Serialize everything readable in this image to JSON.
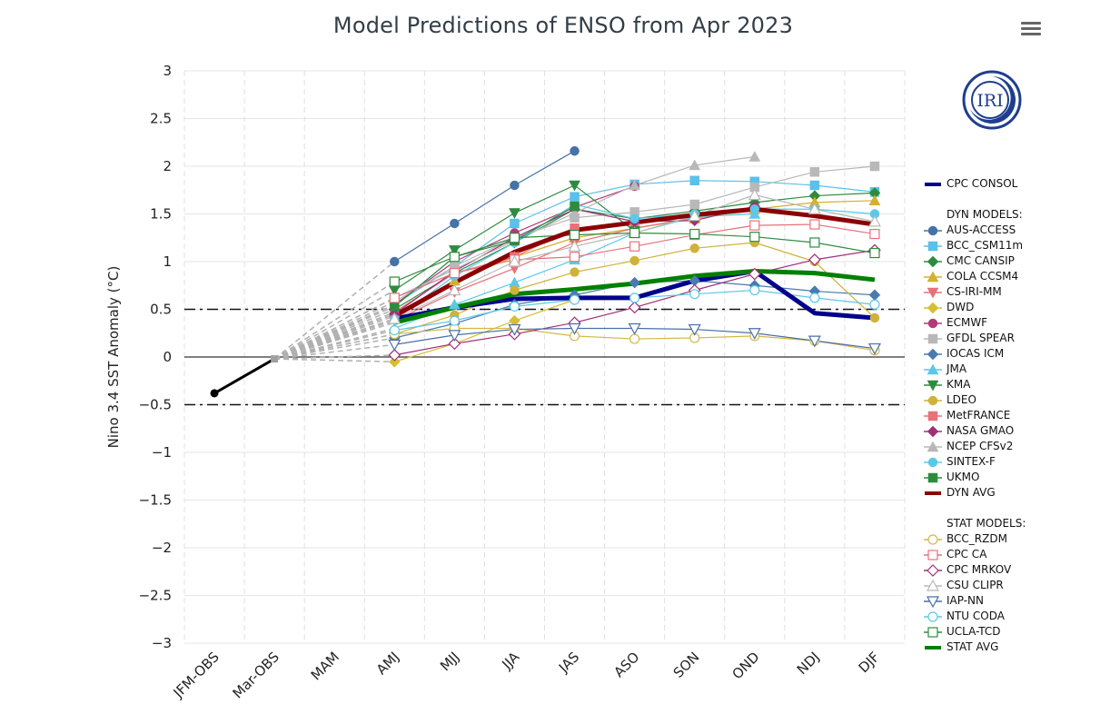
{
  "title": "Model Predictions of ENSO from Apr 2023",
  "menu": {
    "icon": "hamburger-menu-icon",
    "label": "Chart context menu"
  },
  "logo": {
    "text": "IRI",
    "color": "#1f3e8f"
  },
  "chart_data": {
    "type": "line",
    "title": "Model Predictions of ENSO from Apr 2023",
    "xlabel": "",
    "ylabel": "Nino 3.4 SST Anomaly (°C)",
    "ylim": [
      -3,
      3
    ],
    "yticks": [
      "3",
      "2.5",
      "2",
      "1.5",
      "1",
      "0.5",
      "0",
      "−0.5",
      "−1",
      "−1.5",
      "−2",
      "−2.5",
      "−3"
    ],
    "ytick_values": [
      3,
      2.5,
      2,
      1.5,
      1,
      0.5,
      0,
      -0.5,
      -1,
      -1.5,
      -2,
      -2.5,
      -3
    ],
    "categories": [
      "JFM-OBS",
      "Mar-OBS",
      "MAM",
      "AMJ",
      "MJJ",
      "JJA",
      "JAS",
      "ASO",
      "SON",
      "OND",
      "NDJ",
      "DJF"
    ],
    "reference_lines": [
      {
        "value": 0.5,
        "style": "dash-dot"
      },
      {
        "value": -0.5,
        "style": "dash-dot"
      },
      {
        "value": 0,
        "style": "solid"
      }
    ],
    "grid": true,
    "legend_position": "right",
    "observed": {
      "name": "Observed",
      "color": "#000000",
      "values": [
        -0.38,
        -0.02,
        null,
        null,
        null,
        null,
        null,
        null,
        null,
        null,
        null,
        null
      ]
    },
    "legend_headers": {
      "dyn": "DYN MODELS:",
      "stat": "STAT MODELS:"
    },
    "series": [
      {
        "name": "CPC CONSOL",
        "group": "consol",
        "color": "#00008b",
        "marker": "none",
        "width": 5,
        "values": [
          null,
          null,
          null,
          0.4,
          0.52,
          0.61,
          0.62,
          0.62,
          0.8,
          0.9,
          0.46,
          0.41
        ]
      },
      {
        "name": "AUS-ACCESS",
        "group": "dyn",
        "color": "#4572a7",
        "marker": "circle",
        "filled": true,
        "values": [
          null,
          null,
          null,
          1.0,
          1.4,
          1.8,
          2.16,
          null,
          null,
          null,
          null,
          null
        ]
      },
      {
        "name": "BCC_CSM11m",
        "group": "dyn",
        "color": "#5bc0eb",
        "marker": "square",
        "filled": true,
        "values": [
          null,
          null,
          null,
          0.55,
          0.95,
          1.4,
          1.68,
          1.81,
          1.85,
          1.84,
          1.8,
          1.73
        ]
      },
      {
        "name": "CMC CANSIP",
        "group": "dyn",
        "color": "#2e8b3e",
        "marker": "diamond",
        "filled": true,
        "values": [
          null,
          null,
          null,
          0.5,
          0.88,
          1.2,
          1.55,
          1.45,
          1.53,
          1.62,
          1.69,
          1.72
        ]
      },
      {
        "name": "COLA CCSM4",
        "group": "dyn",
        "color": "#d4b02e",
        "marker": "triangle",
        "filled": true,
        "values": [
          null,
          null,
          null,
          0.4,
          0.8,
          1.05,
          1.25,
          1.35,
          1.45,
          1.55,
          1.62,
          1.64
        ]
      },
      {
        "name": "CS-IRI-MM",
        "group": "dyn",
        "color": "#e8707a",
        "marker": "triangle-down",
        "filled": true,
        "values": [
          null,
          null,
          null,
          0.38,
          0.68,
          0.93,
          1.2,
          1.35,
          1.46,
          null,
          null,
          null
        ]
      },
      {
        "name": "DWD",
        "group": "dyn",
        "color": "#d4c030",
        "marker": "diamond",
        "filled": true,
        "values": [
          null,
          null,
          null,
          -0.05,
          0.14,
          0.38,
          0.6,
          null,
          null,
          null,
          null,
          null
        ]
      },
      {
        "name": "ECMWF",
        "group": "dyn",
        "color": "#b03a7a",
        "marker": "circle",
        "filled": true,
        "values": [
          null,
          null,
          null,
          0.55,
          1.0,
          1.3,
          1.57,
          1.79,
          null,
          null,
          null,
          null
        ]
      },
      {
        "name": "GFDL SPEAR",
        "group": "dyn",
        "color": "#b8b8b8",
        "marker": "square",
        "filled": true,
        "values": [
          null,
          null,
          null,
          0.58,
          0.95,
          1.25,
          1.46,
          1.52,
          1.6,
          1.78,
          1.94,
          2.0
        ]
      },
      {
        "name": "IOCAS ICM",
        "group": "dyn",
        "color": "#4a7ab0",
        "marker": "diamond",
        "filled": true,
        "values": [
          null,
          null,
          null,
          0.2,
          0.35,
          0.55,
          0.65,
          0.78,
          0.8,
          0.75,
          0.69,
          0.65
        ]
      },
      {
        "name": "JMA",
        "group": "dyn",
        "color": "#5bc8e8",
        "marker": "triangle",
        "filled": true,
        "values": [
          null,
          null,
          null,
          0.3,
          0.55,
          0.78,
          1.02,
          1.3,
          1.47,
          1.5,
          null,
          null
        ]
      },
      {
        "name": "KMA",
        "group": "dyn",
        "color": "#2e8b3e",
        "marker": "triangle-down",
        "filled": true,
        "values": [
          null,
          null,
          null,
          0.7,
          1.12,
          1.51,
          1.8,
          1.32,
          null,
          null,
          null,
          null
        ]
      },
      {
        "name": "LDEO",
        "group": "dyn",
        "color": "#d0b23a",
        "marker": "circle",
        "filled": true,
        "values": [
          null,
          null,
          null,
          0.24,
          0.44,
          0.7,
          0.89,
          1.01,
          1.14,
          1.2,
          1.0,
          0.41
        ]
      },
      {
        "name": "MetFRANCE",
        "group": "dyn",
        "color": "#e8707a",
        "marker": "square",
        "filled": true,
        "values": [
          null,
          null,
          null,
          0.47,
          0.88,
          1.05,
          1.35,
          null,
          null,
          null,
          null,
          null
        ]
      },
      {
        "name": "NASA GMAO",
        "group": "dyn",
        "color": "#a0307a",
        "marker": "diamond",
        "filled": true,
        "values": [
          null,
          null,
          null,
          0.45,
          0.9,
          1.25,
          1.55,
          1.42,
          1.43,
          1.58,
          null,
          null
        ]
      },
      {
        "name": "NCEP CFSv2",
        "group": "dyn",
        "color": "#b8b8b8",
        "marker": "triangle",
        "filled": true,
        "values": [
          null,
          null,
          null,
          0.62,
          0.92,
          1.22,
          1.51,
          1.8,
          2.01,
          2.1,
          null,
          null
        ]
      },
      {
        "name": "SINTEX-F",
        "group": "dyn",
        "color": "#5bc8e8",
        "marker": "circle",
        "filled": true,
        "values": [
          null,
          null,
          null,
          0.4,
          0.85,
          1.2,
          1.6,
          1.45,
          1.5,
          1.55,
          1.55,
          1.5
        ]
      },
      {
        "name": "UKMO",
        "group": "dyn",
        "color": "#2e8b3e",
        "marker": "square",
        "filled": true,
        "values": [
          null,
          null,
          null,
          0.53,
          1.05,
          1.22,
          1.58,
          null,
          null,
          null,
          null,
          null
        ]
      },
      {
        "name": "DYN AVG",
        "group": "dyn",
        "color": "#8b0000",
        "marker": "none",
        "width": 5,
        "values": [
          null,
          null,
          null,
          0.43,
          0.78,
          1.1,
          1.33,
          1.41,
          1.49,
          1.55,
          1.48,
          1.39
        ]
      },
      {
        "name": "BCC_RZDM",
        "group": "stat",
        "color": "#d4b84a",
        "marker": "circle",
        "filled": false,
        "values": [
          null,
          null,
          null,
          0.24,
          0.3,
          0.3,
          0.22,
          0.19,
          0.2,
          0.22,
          0.17,
          0.07
        ]
      },
      {
        "name": "CPC CA",
        "group": "stat",
        "color": "#e8707a",
        "marker": "square",
        "filled": false,
        "values": [
          null,
          null,
          null,
          0.62,
          0.88,
          1.02,
          1.05,
          1.16,
          1.28,
          1.38,
          1.39,
          1.29
        ]
      },
      {
        "name": "CPC MRKOV",
        "group": "stat",
        "color": "#a0307a",
        "marker": "diamond",
        "filled": false,
        "values": [
          null,
          null,
          null,
          0.02,
          0.14,
          0.24,
          0.36,
          0.52,
          0.7,
          0.87,
          1.02,
          1.12
        ]
      },
      {
        "name": "CSU CLIPR",
        "group": "stat",
        "color": "#b8b8b8",
        "marker": "triangle",
        "filled": false,
        "values": [
          null,
          null,
          null,
          0.4,
          0.7,
          1.0,
          1.16,
          1.3,
          1.48,
          1.7,
          1.55,
          1.42
        ]
      },
      {
        "name": "IAP-NN",
        "group": "stat",
        "color": "#4a6fa5",
        "marker": "triangle-down",
        "filled": false,
        "values": [
          null,
          null,
          null,
          0.13,
          0.23,
          0.29,
          0.3,
          0.3,
          0.29,
          0.25,
          0.17,
          0.09
        ]
      },
      {
        "name": "NTU CODA",
        "group": "stat",
        "color": "#5bc8e8",
        "marker": "circle",
        "filled": false,
        "values": [
          null,
          null,
          null,
          0.28,
          0.38,
          0.53,
          0.6,
          0.62,
          0.66,
          0.7,
          0.62,
          0.55
        ]
      },
      {
        "name": "UCLA-TCD",
        "group": "stat",
        "color": "#2e8b3e",
        "marker": "square",
        "filled": false,
        "values": [
          null,
          null,
          null,
          0.79,
          1.05,
          1.25,
          1.28,
          1.3,
          1.29,
          1.26,
          1.2,
          1.09
        ]
      },
      {
        "name": "STAT AVG",
        "group": "stat",
        "color": "#008000",
        "marker": "none",
        "width": 5,
        "values": [
          null,
          null,
          null,
          0.36,
          0.52,
          0.66,
          0.71,
          0.77,
          0.85,
          0.9,
          0.88,
          0.81
        ]
      }
    ]
  }
}
